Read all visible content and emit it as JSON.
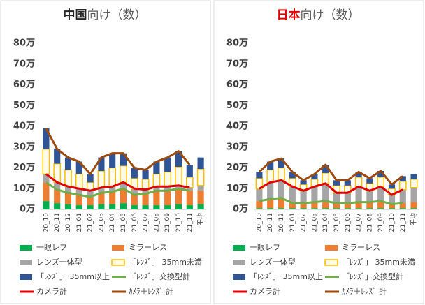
{
  "chart_data": [
    {
      "type": "bar",
      "title": {
        "emphasis": "中国",
        "rest": "向け（数）"
      },
      "title_emphasis_color": "#262626",
      "categories": [
        "20_10",
        "20_11",
        "20_12",
        "21_01",
        "21_02",
        "21_03",
        "21_04",
        "21_05",
        "21_06",
        "21_07",
        "21_08",
        "21_09",
        "21_10",
        "21_11",
        "平均"
      ],
      "ylim": [
        0,
        80
      ],
      "yticks": [
        {
          "value": 0,
          "label": "0万"
        },
        {
          "value": 10,
          "label": "10万"
        },
        {
          "value": 20,
          "label": "20万"
        },
        {
          "value": 30,
          "label": "30万"
        },
        {
          "value": 40,
          "label": "40万"
        },
        {
          "value": 50,
          "label": "50万"
        },
        {
          "value": 60,
          "label": "60万"
        },
        {
          "value": 70,
          "label": "70万"
        },
        {
          "value": 80,
          "label": "80万"
        }
      ],
      "grid": false,
      "series": [
        {
          "name": "一眼レフ",
          "type": "bar",
          "color": "#00b050",
          "values": [
            4,
            3,
            2.5,
            2,
            2,
            2.5,
            2.5,
            3,
            2,
            2,
            2,
            2,
            2.5,
            2,
            2.5
          ]
        },
        {
          "name": "ミラーレス",
          "type": "bar",
          "color": "#ed7d31",
          "values": [
            9,
            6.5,
            5.5,
            5,
            4,
            5.5,
            6,
            7,
            5,
            5.5,
            7,
            7,
            7.5,
            7,
            6.5
          ]
        },
        {
          "name": "レンズ一体型",
          "type": "bar",
          "color": "#a5a5a5",
          "values": [
            4,
            3.5,
            3,
            3,
            3,
            2.5,
            2.5,
            3,
            3,
            2,
            2,
            2,
            1.5,
            1.5,
            2.5
          ]
        },
        {
          "name": "「ﾚﾝｽﾞ」 35mm未満",
          "type": "bar",
          "color": "#ffc000",
          "values": [
            12,
            9,
            8,
            7,
            4,
            8,
            9,
            8,
            5,
            5,
            6,
            7,
            9,
            5,
            8
          ]
        },
        {
          "name": "「ﾚﾝｽﾞ」 35mm以上",
          "type": "bar",
          "color": "#2f5597",
          "values": [
            10,
            7,
            6,
            6,
            4,
            6.5,
            7,
            6,
            5,
            4.5,
            6,
            7,
            7.5,
            6,
            5.5
          ]
        },
        {
          "name": "「ﾚﾝｽﾞ」交換型計",
          "type": "line",
          "color": "#70ad47",
          "values": [
            13,
            9.5,
            8,
            7,
            6,
            8,
            8.5,
            10,
            7,
            7.5,
            9,
            9,
            10,
            9,
            null
          ]
        },
        {
          "name": "カメラ計",
          "type": "line",
          "color": "#e00000",
          "values": [
            17,
            13,
            11,
            10,
            9,
            10.5,
            11,
            13,
            10,
            9.5,
            11,
            11,
            11.5,
            10.5,
            null
          ]
        },
        {
          "name": "ｶﾒﾗ＋ﾚﾝｽﾞ 計",
          "type": "line",
          "color": "#9c4a0e",
          "values": [
            39,
            29,
            25,
            23,
            17,
            25,
            27,
            27,
            20,
            19,
            23,
            25,
            28,
            21.5,
            null
          ]
        }
      ]
    },
    {
      "type": "bar",
      "title": {
        "emphasis": "日本",
        "rest": "向け（数）"
      },
      "title_emphasis_color": "#e00000",
      "categories": [
        "20_10",
        "20_11",
        "20_12",
        "21_01",
        "21_02",
        "21_03",
        "21_04",
        "21_05",
        "21_06",
        "21_07",
        "21_08",
        "21_09",
        "21_10",
        "21_11",
        "平均"
      ],
      "ylim": [
        0,
        80
      ],
      "yticks": [
        {
          "value": 0,
          "label": "0万"
        },
        {
          "value": 10,
          "label": "10万"
        },
        {
          "value": 20,
          "label": "20万"
        },
        {
          "value": 30,
          "label": "30万"
        },
        {
          "value": 40,
          "label": "40万"
        },
        {
          "value": 50,
          "label": "50万"
        },
        {
          "value": 60,
          "label": "60万"
        },
        {
          "value": 70,
          "label": "70万"
        },
        {
          "value": 80,
          "label": "80万"
        }
      ],
      "grid": false,
      "series": [
        {
          "name": "一眼レフ",
          "type": "bar",
          "color": "#00b050",
          "values": [
            0.5,
            0.5,
            0.5,
            0.5,
            0.5,
            0.5,
            0.5,
            0.5,
            0.5,
            0.5,
            0.5,
            0.5,
            0.5,
            0.5,
            0.5
          ]
        },
        {
          "name": "ミラーレス",
          "type": "bar",
          "color": "#ed7d31",
          "values": [
            3.5,
            4.5,
            5,
            2.5,
            2.5,
            3,
            3.5,
            2.5,
            2.5,
            3,
            3,
            3.5,
            2,
            2.5,
            3
          ]
        },
        {
          "name": "レンズ一体型",
          "type": "bar",
          "color": "#a5a5a5",
          "values": [
            6,
            8,
            8.5,
            8,
            6,
            7.5,
            8.5,
            5,
            5,
            7.5,
            5.5,
            7,
            4.5,
            6.5,
            7
          ]
        },
        {
          "name": "「ﾚﾝｽﾞ」 35mm未満",
          "type": "bar",
          "color": "#ffc000",
          "values": [
            5,
            6,
            6,
            4,
            3,
            3.5,
            5,
            3.5,
            3.5,
            4.5,
            3.5,
            4.5,
            3,
            4,
            4
          ]
        },
        {
          "name": "「ﾚﾝｽﾞ」 35mm以上",
          "type": "bar",
          "color": "#2f5597",
          "values": [
            3,
            4,
            4.5,
            3,
            2,
            2.5,
            4,
            2.5,
            2.5,
            2.5,
            2.5,
            3,
            2,
            2.5,
            2.5
          ]
        },
        {
          "name": "「ﾚﾝｽﾞ」交換型計",
          "type": "line",
          "color": "#70ad47",
          "values": [
            4,
            5,
            5.5,
            3,
            3,
            3.5,
            4,
            3,
            3,
            3.5,
            3.5,
            4,
            2.5,
            3,
            null
          ]
        },
        {
          "name": "カメラ計",
          "type": "line",
          "color": "#e00000",
          "values": [
            10,
            13,
            14,
            11,
            9,
            11,
            12.5,
            8,
            8,
            11,
            9,
            11,
            7,
            9.5,
            null
          ]
        },
        {
          "name": "ｶﾒﾗ＋ﾚﾝｽﾞ 計",
          "type": "line",
          "color": "#9c4a0e",
          "values": [
            18,
            23,
            24.5,
            18,
            14,
            17,
            21.5,
            14,
            14,
            18,
            15,
            18.5,
            12,
            16,
            null
          ]
        }
      ]
    }
  ]
}
